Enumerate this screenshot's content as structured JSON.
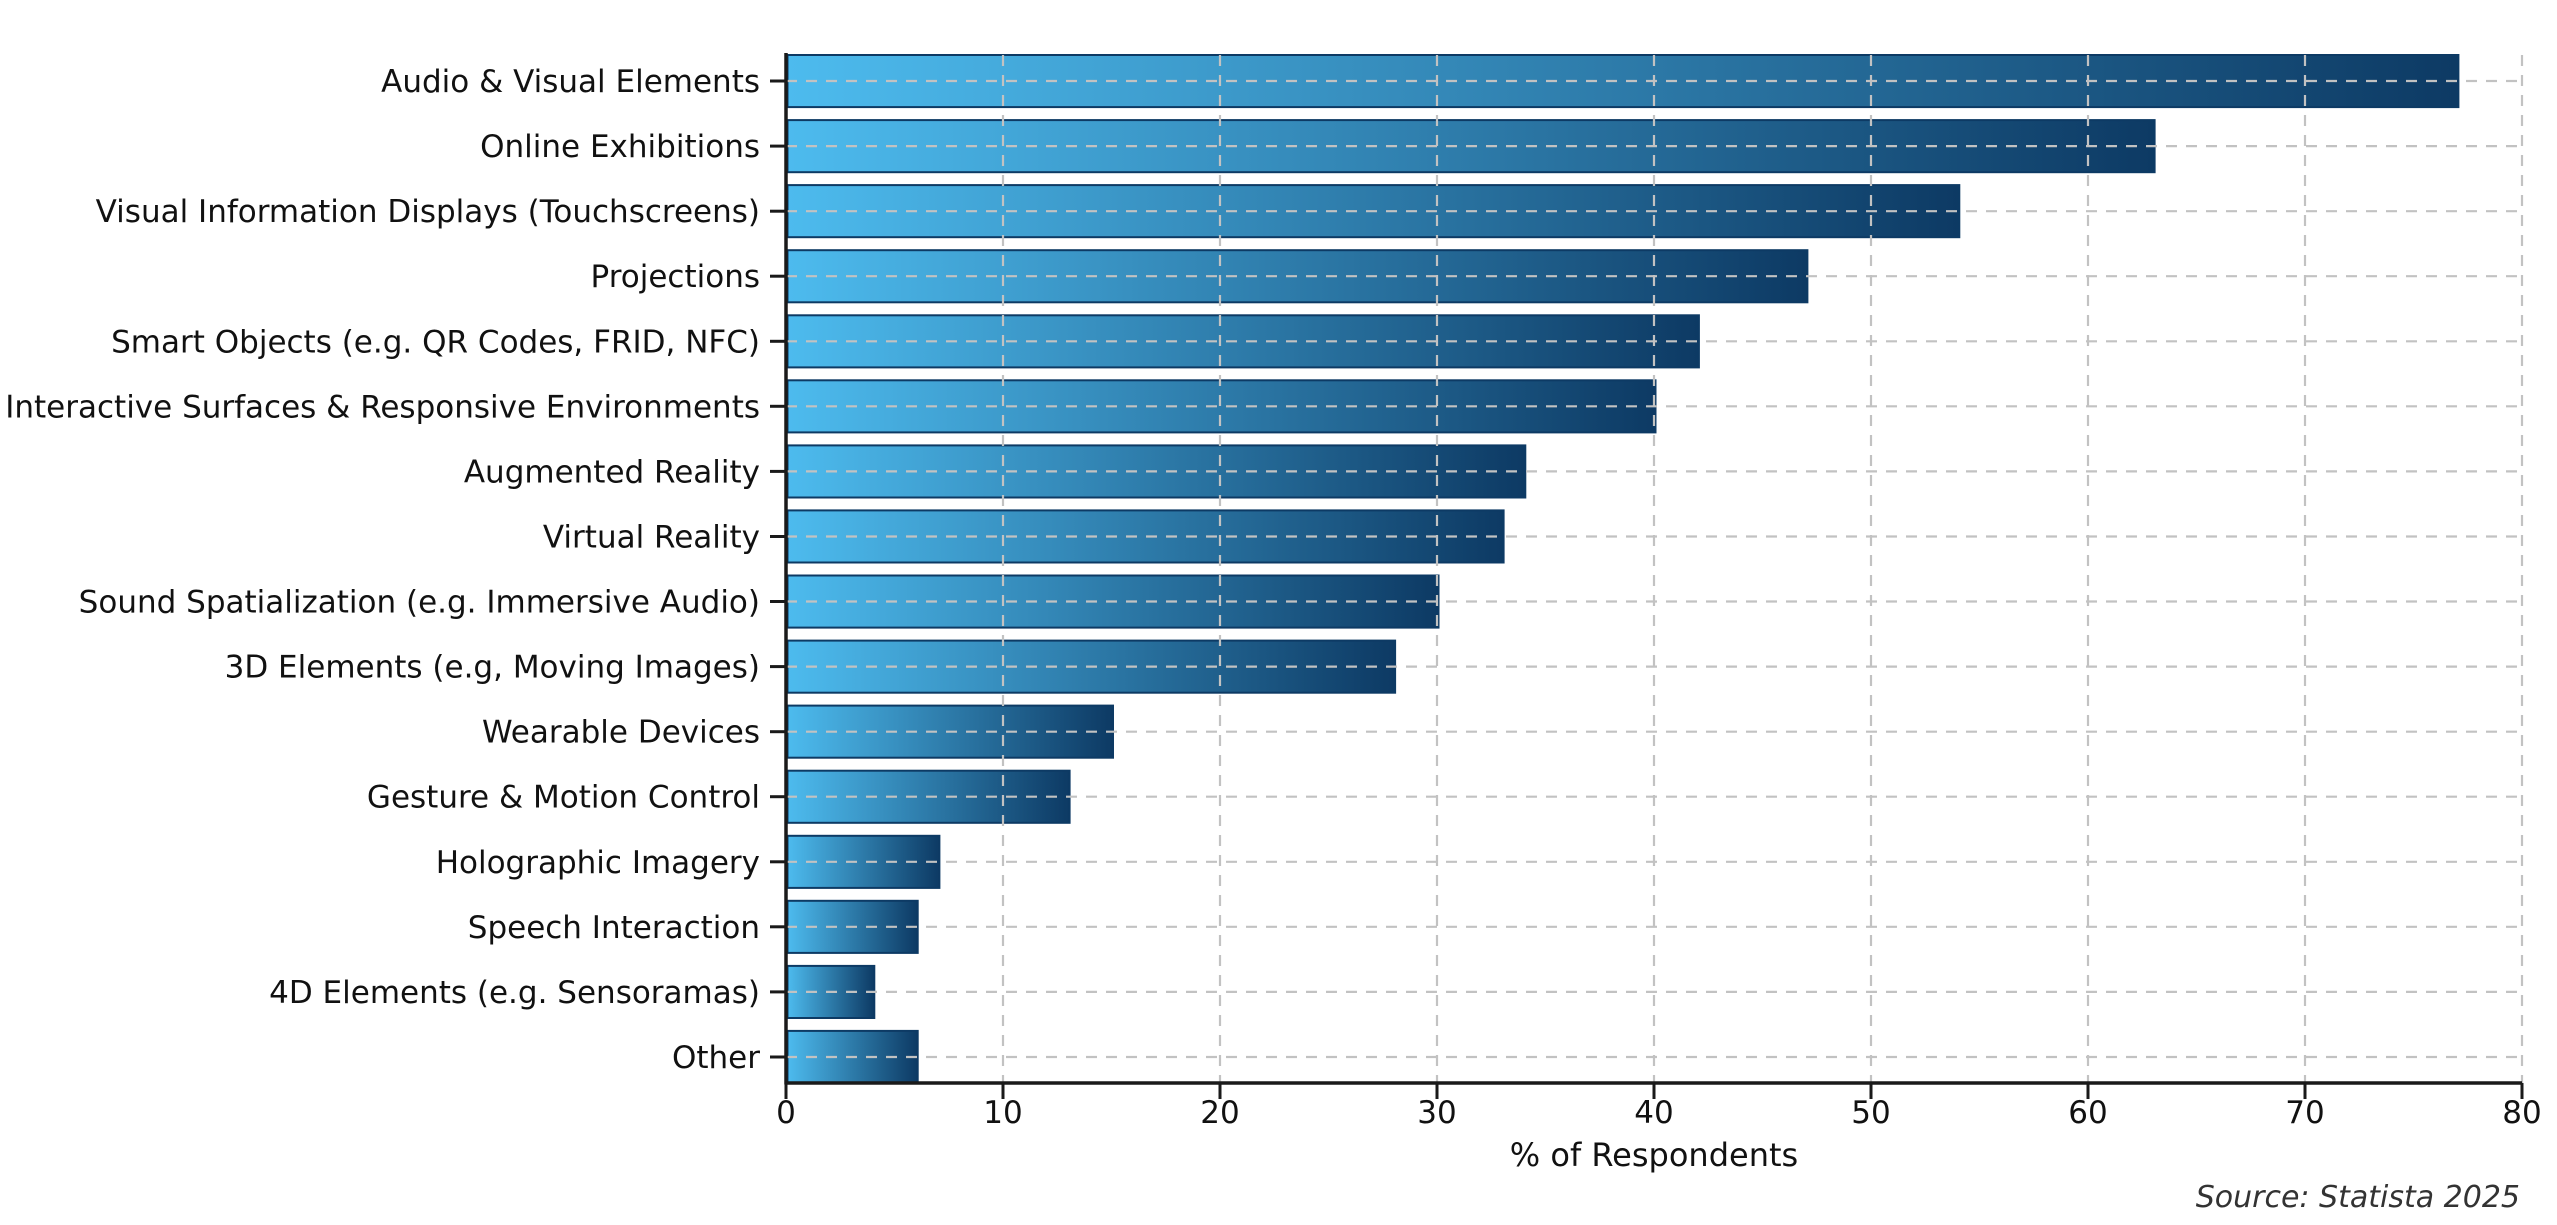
{
  "chart_data": {
    "type": "bar",
    "orientation": "horizontal",
    "title": "",
    "categories": [
      "Audio & Visual Elements",
      "Online Exhibitions",
      "Visual Information Displays (Touchscreens)",
      "Projections",
      "Smart Objects (e.g. QR Codes, FRID, NFC)",
      "Interactive Surfaces & Responsive Environments",
      "Augmented Reality",
      "Virtual Reality",
      "Sound Spatialization (e.g. Immersive Audio)",
      "3D Elements (e.g, Moving Images)",
      "Wearable Devices",
      "Gesture & Motion Control",
      "Holographic Imagery",
      "Speech Interaction",
      "4D Elements (e.g. Sensoramas)",
      "Other"
    ],
    "values": [
      77,
      63,
      54,
      47,
      42,
      40,
      34,
      33,
      30,
      28,
      15,
      13,
      7,
      6,
      4,
      6
    ],
    "xlabel": "% of Respondents",
    "ylabel": "",
    "xlim": [
      0,
      80
    ],
    "xticks": [
      0,
      10,
      20,
      30,
      40,
      50,
      60,
      70,
      80
    ],
    "grid": "dashed, both axes, drawn over bars",
    "legend": "none",
    "source_note": "Source: Statista 2025",
    "colors": {
      "bar_gradient_start": "#4dbbee",
      "bar_gradient_end": "#0d3a64",
      "bar_edge": "#0d3a64",
      "grid": "#c2c2c2",
      "axis": "#1a1a1a",
      "text": "#111111",
      "source_text": "#333333",
      "background": "#ffffff"
    }
  }
}
